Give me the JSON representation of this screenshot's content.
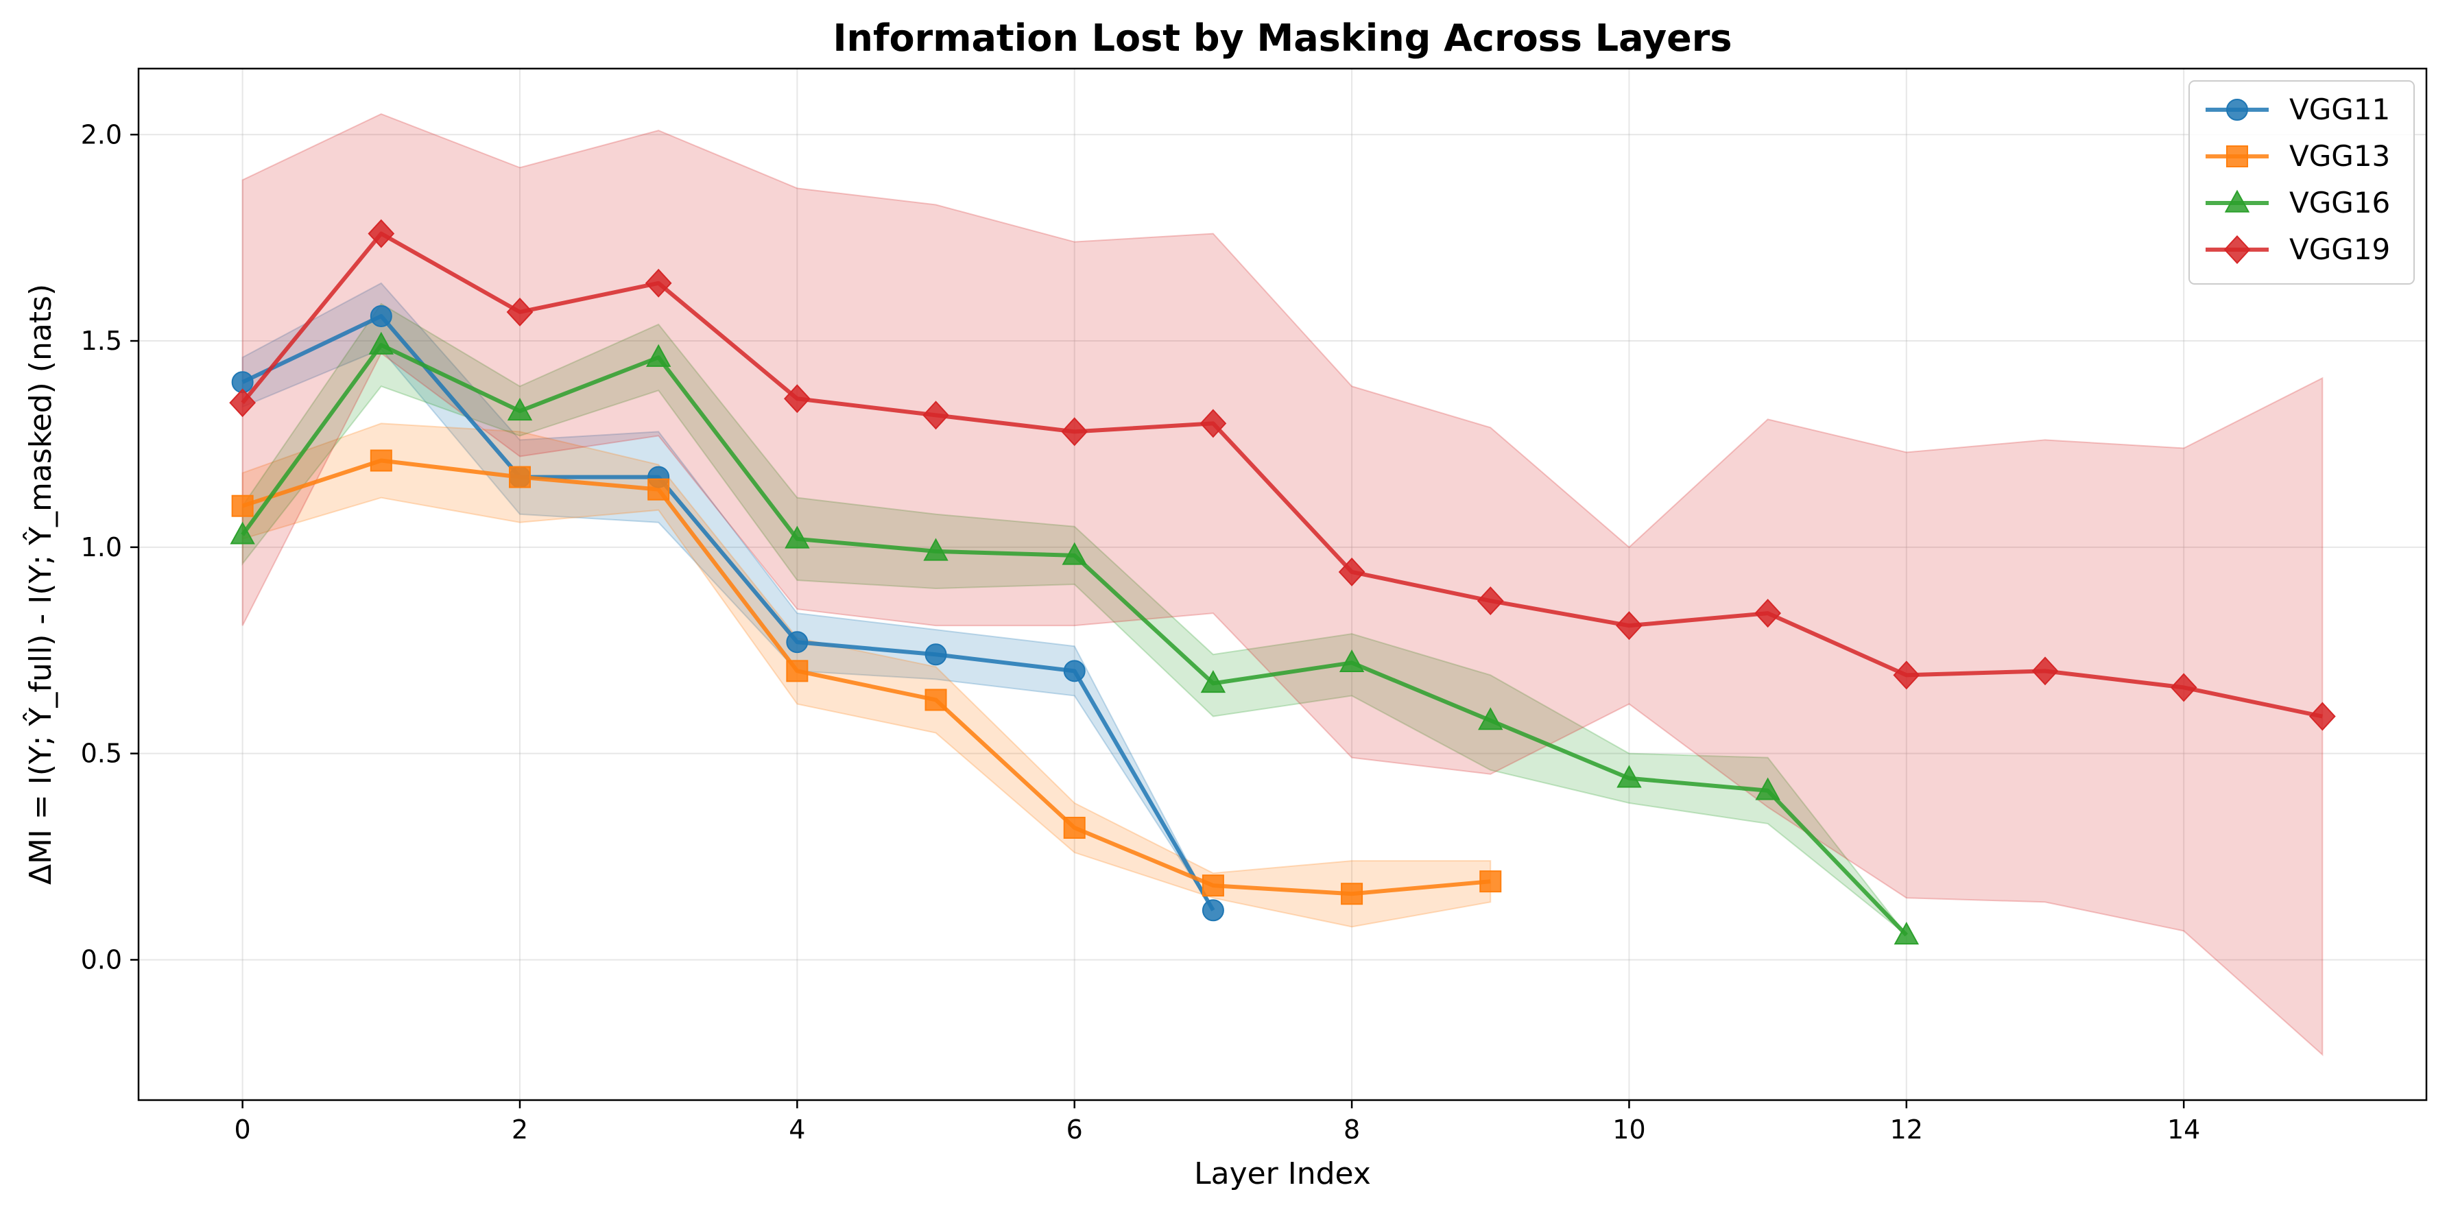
{
  "chart_data": {
    "type": "line",
    "title": "Information Lost by Masking Across Layers",
    "xlabel": "Layer Index",
    "ylabel": "ΔMI = I(Y; Ŷ_full) - I(Y; Ŷ_masked) (nats)",
    "xlim": [
      -0.75,
      15.75
    ],
    "ylim": [
      -0.34,
      2.16
    ],
    "xticks": [
      0,
      2,
      4,
      6,
      8,
      10,
      12,
      14
    ],
    "yticks": [
      0.0,
      0.5,
      1.0,
      1.5,
      2.0
    ],
    "xtick_labels": [
      "0",
      "2",
      "4",
      "6",
      "8",
      "10",
      "12",
      "14"
    ],
    "ytick_labels": [
      "0.0",
      "0.5",
      "1.0",
      "1.5",
      "2.0"
    ],
    "grid": true,
    "legend_position": "top-right",
    "series": [
      {
        "name": "VGG11",
        "color": "#1f77b4",
        "marker": "circle",
        "x": [
          0,
          1,
          2,
          3,
          4,
          5,
          6,
          7
        ],
        "y": [
          1.4,
          1.56,
          1.17,
          1.17,
          0.77,
          0.74,
          0.7,
          0.12
        ],
        "lower": [
          1.34,
          1.48,
          1.08,
          1.06,
          0.7,
          0.68,
          0.64,
          0.12
        ],
        "upper": [
          1.46,
          1.64,
          1.26,
          1.28,
          0.84,
          0.8,
          0.76,
          0.12
        ]
      },
      {
        "name": "VGG13",
        "color": "#ff7f0e",
        "marker": "square",
        "x": [
          0,
          1,
          2,
          3,
          4,
          5,
          6,
          7,
          8,
          9
        ],
        "y": [
          1.1,
          1.21,
          1.17,
          1.14,
          0.7,
          0.63,
          0.32,
          0.18,
          0.16,
          0.19
        ],
        "lower": [
          1.02,
          1.12,
          1.06,
          1.09,
          0.62,
          0.55,
          0.26,
          0.15,
          0.08,
          0.14
        ],
        "upper": [
          1.18,
          1.3,
          1.28,
          1.2,
          0.78,
          0.71,
          0.38,
          0.21,
          0.24,
          0.24
        ]
      },
      {
        "name": "VGG16",
        "color": "#2ca02c",
        "marker": "triangle",
        "x": [
          0,
          1,
          2,
          3,
          4,
          5,
          6,
          7,
          8,
          9,
          10,
          11,
          12
        ],
        "y": [
          1.03,
          1.49,
          1.33,
          1.46,
          1.02,
          0.99,
          0.98,
          0.67,
          0.72,
          0.58,
          0.44,
          0.41,
          0.06
        ],
        "lower": [
          0.96,
          1.39,
          1.27,
          1.38,
          0.92,
          0.9,
          0.91,
          0.59,
          0.64,
          0.46,
          0.38,
          0.33,
          0.06
        ],
        "upper": [
          1.1,
          1.59,
          1.39,
          1.54,
          1.12,
          1.08,
          1.05,
          0.74,
          0.79,
          0.69,
          0.5,
          0.49,
          0.06
        ]
      },
      {
        "name": "VGG19",
        "color": "#d62728",
        "marker": "diamond",
        "x": [
          0,
          1,
          2,
          3,
          4,
          5,
          6,
          7,
          8,
          9,
          10,
          11,
          12,
          13,
          14,
          15
        ],
        "y": [
          1.35,
          1.76,
          1.57,
          1.64,
          1.36,
          1.32,
          1.28,
          1.3,
          0.94,
          0.87,
          0.81,
          0.84,
          0.69,
          0.7,
          0.66,
          0.59
        ],
        "lower": [
          0.81,
          1.47,
          1.22,
          1.27,
          0.85,
          0.81,
          0.81,
          0.84,
          0.49,
          0.45,
          0.62,
          0.37,
          0.15,
          0.14,
          0.07,
          -0.23
        ],
        "upper": [
          1.89,
          2.05,
          1.92,
          2.01,
          1.87,
          1.83,
          1.74,
          1.76,
          1.39,
          1.29,
          1.0,
          1.31,
          1.23,
          1.26,
          1.24,
          1.41
        ]
      }
    ]
  }
}
